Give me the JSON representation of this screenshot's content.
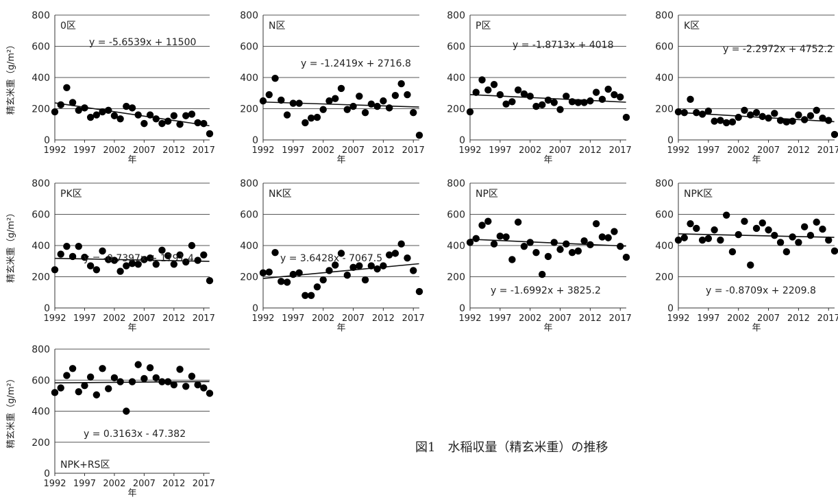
{
  "figure_caption": "図1　水稲収量（精玄米重）の推移",
  "chart_data": [
    {
      "type": "scatter",
      "panel_label": "0区",
      "xlabel": "年",
      "ylabel": "精玄米重（g/m²）",
      "xlim": [
        1992,
        2018
      ],
      "ylim": [
        0,
        800
      ],
      "xticks": [
        1992,
        1997,
        2002,
        2007,
        2012,
        2017
      ],
      "yticks": [
        0,
        200,
        400,
        600,
        800
      ],
      "grid": "horizontal",
      "x": [
        1992,
        1993,
        1994,
        1995,
        1996,
        1997,
        1998,
        1999,
        2000,
        2001,
        2002,
        2003,
        2004,
        2005,
        2006,
        2007,
        2008,
        2009,
        2010,
        2011,
        2012,
        2013,
        2014,
        2015,
        2016,
        2017,
        2018
      ],
      "y": [
        180,
        225,
        335,
        240,
        190,
        205,
        145,
        160,
        180,
        190,
        155,
        135,
        215,
        205,
        160,
        105,
        160,
        135,
        105,
        120,
        155,
        100,
        155,
        165,
        110,
        105,
        40
      ],
      "trendline": {
        "slope": -5.6539,
        "intercept": 11500,
        "equation": "y = -5.6539x + 11500"
      }
    },
    {
      "type": "scatter",
      "panel_label": "N区",
      "xlabel": "年",
      "xlim": [
        1992,
        2018
      ],
      "ylim": [
        0,
        800
      ],
      "xticks": [
        1992,
        1997,
        2002,
        2007,
        2012,
        2017
      ],
      "yticks": [
        0,
        200,
        400,
        600,
        800
      ],
      "grid": "horizontal",
      "x": [
        1992,
        1993,
        1994,
        1995,
        1996,
        1997,
        1998,
        1999,
        2000,
        2001,
        2002,
        2003,
        2004,
        2005,
        2006,
        2007,
        2008,
        2009,
        2010,
        2011,
        2012,
        2013,
        2014,
        2015,
        2016,
        2017,
        2018
      ],
      "y": [
        250,
        290,
        395,
        255,
        160,
        235,
        235,
        110,
        140,
        145,
        195,
        250,
        265,
        330,
        195,
        215,
        280,
        175,
        230,
        215,
        250,
        205,
        285,
        360,
        290,
        175,
        30
      ],
      "trendline": {
        "slope": -1.2419,
        "intercept": 2716.8,
        "equation": "y = -1.2419x + 2716.8"
      }
    },
    {
      "type": "scatter",
      "panel_label": "P区",
      "xlabel": "年",
      "xlim": [
        1992,
        2018
      ],
      "ylim": [
        0,
        800
      ],
      "xticks": [
        1992,
        1997,
        2002,
        2007,
        2012,
        2017
      ],
      "yticks": [
        0,
        200,
        400,
        600,
        800
      ],
      "grid": "horizontal",
      "x": [
        1992,
        1993,
        1994,
        1995,
        1996,
        1997,
        1998,
        1999,
        2000,
        2001,
        2002,
        2003,
        2004,
        2005,
        2006,
        2007,
        2008,
        2009,
        2010,
        2011,
        2012,
        2013,
        2014,
        2015,
        2016,
        2017,
        2018
      ],
      "y": [
        180,
        305,
        385,
        320,
        355,
        290,
        230,
        245,
        320,
        295,
        280,
        215,
        225,
        255,
        240,
        195,
        280,
        245,
        240,
        240,
        250,
        305,
        260,
        325,
        290,
        275,
        145
      ],
      "trendline": {
        "slope": -1.8713,
        "intercept": 4018,
        "equation": "y = -1.8713x + 4018"
      }
    },
    {
      "type": "scatter",
      "panel_label": "K区",
      "xlabel": "年",
      "xlim": [
        1992,
        2018
      ],
      "ylim": [
        0,
        800
      ],
      "xticks": [
        1992,
        1997,
        2002,
        2007,
        2012,
        2017
      ],
      "yticks": [
        0,
        200,
        400,
        600,
        800
      ],
      "grid": "horizontal",
      "x": [
        1992,
        1993,
        1994,
        1995,
        1996,
        1997,
        1998,
        1999,
        2000,
        2001,
        2002,
        2003,
        2004,
        2005,
        2006,
        2007,
        2008,
        2009,
        2010,
        2011,
        2012,
        2013,
        2014,
        2015,
        2016,
        2017,
        2018
      ],
      "y": [
        180,
        175,
        260,
        175,
        165,
        185,
        120,
        125,
        110,
        115,
        145,
        190,
        160,
        175,
        150,
        140,
        170,
        125,
        115,
        120,
        160,
        130,
        155,
        190,
        140,
        125,
        35
      ],
      "trendline": {
        "slope": -2.2972,
        "intercept": 4752.2,
        "equation": "y = -2.2972x + 4752.2"
      }
    },
    {
      "type": "scatter",
      "panel_label": "PK区",
      "xlabel": "年",
      "ylabel": "精玄米重（g/m²）",
      "xlim": [
        1992,
        2018
      ],
      "ylim": [
        0,
        800
      ],
      "xticks": [
        1992,
        1997,
        2002,
        2007,
        2012,
        2017
      ],
      "yticks": [
        0,
        200,
        400,
        600,
        800
      ],
      "grid": "horizontal",
      "x": [
        1992,
        1993,
        1994,
        1995,
        1996,
        1997,
        1998,
        1999,
        2000,
        2001,
        2002,
        2003,
        2004,
        2005,
        2006,
        2007,
        2008,
        2009,
        2010,
        2011,
        2012,
        2013,
        2014,
        2015,
        2016,
        2017,
        2018
      ],
      "y": [
        245,
        345,
        395,
        330,
        395,
        325,
        270,
        245,
        365,
        310,
        305,
        235,
        270,
        285,
        280,
        310,
        320,
        280,
        370,
        335,
        280,
        340,
        295,
        400,
        305,
        340,
        175
      ],
      "trendline": {
        "slope": -0.7397,
        "intercept": 1791.4,
        "equation": "y = -0.7397x + 1791.4"
      }
    },
    {
      "type": "scatter",
      "panel_label": "NK区",
      "xlabel": "年",
      "xlim": [
        1992,
        2018
      ],
      "ylim": [
        0,
        800
      ],
      "xticks": [
        1992,
        1997,
        2002,
        2007,
        2012,
        2017
      ],
      "yticks": [
        0,
        200,
        400,
        600,
        800
      ],
      "grid": "horizontal",
      "x": [
        1992,
        1993,
        1994,
        1995,
        1996,
        1997,
        1998,
        1999,
        2000,
        2001,
        2002,
        2003,
        2004,
        2005,
        2006,
        2007,
        2008,
        2009,
        2010,
        2011,
        2012,
        2013,
        2014,
        2015,
        2016,
        2017,
        2018
      ],
      "y": [
        225,
        230,
        355,
        170,
        165,
        215,
        225,
        80,
        80,
        135,
        180,
        240,
        275,
        350,
        210,
        260,
        270,
        180,
        270,
        250,
        270,
        340,
        350,
        410,
        320,
        240,
        105
      ],
      "trendline": {
        "slope": 3.6428,
        "intercept": -7067.5,
        "equation": "y = 3.6428x - 7067.5"
      }
    },
    {
      "type": "scatter",
      "panel_label": "NP区",
      "xlabel": "年",
      "xlim": [
        1992,
        2018
      ],
      "ylim": [
        0,
        800
      ],
      "xticks": [
        1992,
        1997,
        2002,
        2007,
        2012,
        2017
      ],
      "yticks": [
        0,
        200,
        400,
        600,
        800
      ],
      "grid": "horizontal",
      "x": [
        1992,
        1993,
        1994,
        1995,
        1996,
        1997,
        1998,
        1999,
        2000,
        2001,
        2002,
        2003,
        2004,
        2005,
        2006,
        2007,
        2008,
        2009,
        2010,
        2011,
        2012,
        2013,
        2014,
        2015,
        2016,
        2017,
        2018
      ],
      "y": [
        420,
        445,
        530,
        555,
        410,
        460,
        455,
        310,
        550,
        395,
        420,
        355,
        215,
        330,
        420,
        375,
        410,
        355,
        365,
        430,
        405,
        540,
        455,
        450,
        490,
        395,
        325
      ],
      "trendline": {
        "slope": -1.6992,
        "intercept": 3825.2,
        "equation": "y = -1.6992x + 3825.2"
      }
    },
    {
      "type": "scatter",
      "panel_label": "NPK区",
      "xlabel": "年",
      "xlim": [
        1992,
        2018
      ],
      "ylim": [
        0,
        800
      ],
      "xticks": [
        1992,
        1997,
        2002,
        2007,
        2012,
        2017
      ],
      "yticks": [
        0,
        200,
        400,
        600,
        800
      ],
      "grid": "horizontal",
      "x": [
        1992,
        1993,
        1994,
        1995,
        1996,
        1997,
        1998,
        1999,
        2000,
        2001,
        2002,
        2003,
        2004,
        2005,
        2006,
        2007,
        2008,
        2009,
        2010,
        2011,
        2012,
        2013,
        2014,
        2015,
        2016,
        2017,
        2018
      ],
      "y": [
        435,
        450,
        540,
        510,
        435,
        445,
        500,
        435,
        595,
        360,
        470,
        555,
        275,
        510,
        545,
        500,
        465,
        420,
        360,
        455,
        420,
        520,
        465,
        550,
        505,
        435,
        365
      ],
      "trendline": {
        "slope": -0.8709,
        "intercept": 2209.8,
        "equation": "y = -0.8709x + 2209.8"
      }
    },
    {
      "type": "scatter",
      "panel_label": "NPK+RS区",
      "xlabel": "年",
      "ylabel": "精玄米重（g/m²）",
      "xlim": [
        1992,
        2018
      ],
      "ylim": [
        0,
        800
      ],
      "xticks": [
        1992,
        1997,
        2002,
        2007,
        2012,
        2017
      ],
      "yticks": [
        0,
        200,
        400,
        600,
        800
      ],
      "grid": "horizontal",
      "x": [
        1992,
        1993,
        1994,
        1995,
        1996,
        1997,
        1998,
        1999,
        2000,
        2001,
        2002,
        2003,
        2004,
        2005,
        2006,
        2007,
        2008,
        2009,
        2010,
        2011,
        2012,
        2013,
        2014,
        2015,
        2016,
        2017,
        2018
      ],
      "y": [
        520,
        550,
        630,
        675,
        525,
        565,
        620,
        505,
        675,
        545,
        615,
        590,
        400,
        590,
        700,
        610,
        680,
        615,
        590,
        590,
        570,
        670,
        560,
        625,
        570,
        550,
        515
      ],
      "trendline": {
        "slope": 0.3163,
        "intercept": -47.382,
        "equation": "y = 0.3163x - 47.382"
      }
    }
  ]
}
